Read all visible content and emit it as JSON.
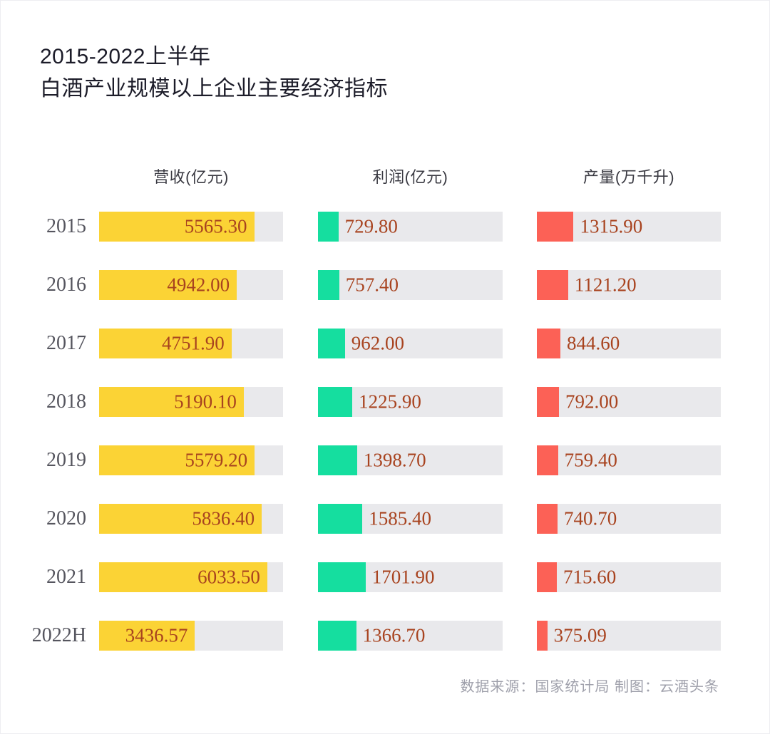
{
  "title": {
    "line1": "2015-2022上半年",
    "line2": "白酒产业规模以上企业主要经济指标"
  },
  "footer": {
    "text": "数据来源：国家统计局 制图：云酒头条"
  },
  "colors": {
    "revenue_bar": "#fbd335",
    "profit_bar": "#15de9f",
    "production_bar": "#fc6156",
    "bar_track": "#e9e9ec",
    "value_text": "#a8431f"
  },
  "chart_data": {
    "type": "bar",
    "title": "2015-2022上半年 白酒产业规模以上企业主要经济指标",
    "categories": [
      "2015",
      "2016",
      "2017",
      "2018",
      "2019",
      "2020",
      "2021",
      "2022H"
    ],
    "series": [
      {
        "key": "revenue",
        "name": "营收(亿元)",
        "color": "#fbd335",
        "value_label_position": "inside",
        "values": [
          5565.3,
          4942.0,
          4751.9,
          5190.1,
          5579.2,
          5836.4,
          6033.5,
          3436.57
        ],
        "labels": [
          "5565.30",
          "4942.00",
          "4751.90",
          "5190.10",
          "5579.20",
          "5836.40",
          "6033.50",
          "3436.57"
        ]
      },
      {
        "key": "profit",
        "name": "利润(亿元)",
        "color": "#15de9f",
        "value_label_position": "outside",
        "values": [
          729.8,
          757.4,
          962.0,
          1225.9,
          1398.7,
          1585.4,
          1701.9,
          1366.7
        ],
        "labels": [
          "729.80",
          "757.40",
          "962.00",
          "1225.90",
          "1398.70",
          "1585.40",
          "1701.90",
          "1366.70"
        ]
      },
      {
        "key": "production",
        "name": "产量(万千升)",
        "color": "#fc6156",
        "value_label_position": "outside",
        "values": [
          1315.9,
          1121.2,
          844.6,
          792.0,
          759.4,
          740.7,
          715.6,
          375.09
        ],
        "labels": [
          "1315.90",
          "1121.20",
          "844.60",
          "792.00",
          "759.40",
          "740.70",
          "715.60",
          "375.09"
        ]
      }
    ],
    "bar_scale_max": 6600,
    "legend_position": "column-headers",
    "grid": false
  }
}
